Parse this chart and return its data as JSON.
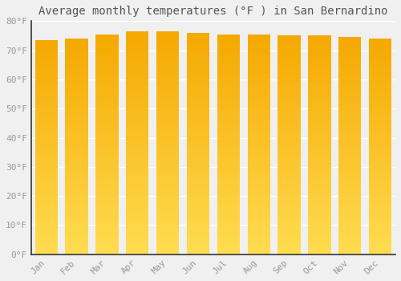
{
  "title": "Average monthly temperatures (°F ) in San Bernardino",
  "months": [
    "Jan",
    "Feb",
    "Mar",
    "Apr",
    "May",
    "Jun",
    "Jul",
    "Aug",
    "Sep",
    "Oct",
    "Nov",
    "Dec"
  ],
  "values": [
    73.5,
    74.0,
    75.5,
    76.5,
    76.5,
    76.0,
    75.5,
    75.5,
    75.0,
    75.0,
    74.5,
    74.0
  ],
  "bar_color_top": "#F5A800",
  "bar_color_bottom": "#FFD840",
  "background_color": "#f0f0f0",
  "plot_bg_color": "#f0f0f0",
  "grid_color": "#ffffff",
  "text_color": "#999999",
  "title_color": "#555555",
  "spine_color": "#333333",
  "ylim": [
    0,
    80
  ],
  "yticks": [
    0,
    10,
    20,
    30,
    40,
    50,
    60,
    70,
    80
  ],
  "title_fontsize": 10,
  "tick_fontsize": 8,
  "font_family": "monospace",
  "bar_width": 0.75
}
